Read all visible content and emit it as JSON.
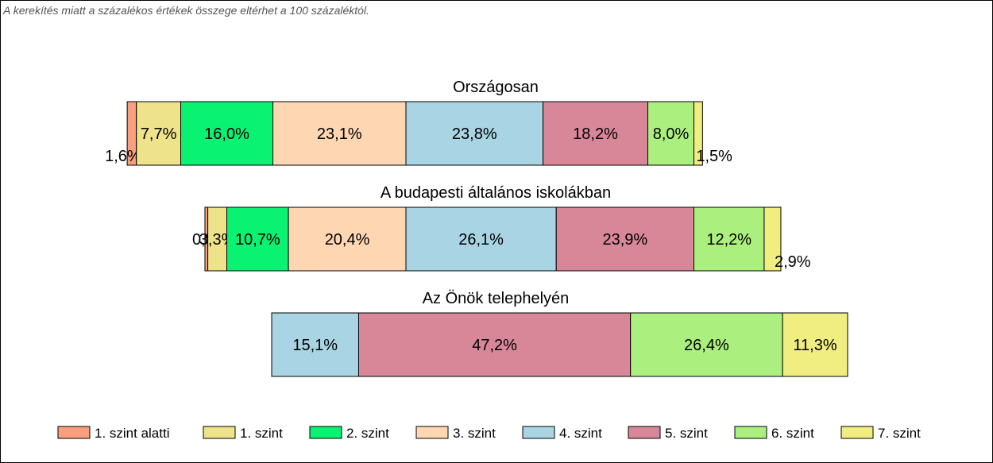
{
  "note": "A kerekítés miatt a  százalékos értékek összege eltérhet a 100 százaléktól.",
  "chart_data": {
    "type": "bar",
    "orientation": "horizontal-stacked",
    "unit": "%",
    "legend": {
      "placement": "bottom",
      "items": [
        {
          "name": "1. szint alatti",
          "color": "#f99f7e"
        },
        {
          "name": "1. szint",
          "color": "#eee28a"
        },
        {
          "name": "2. szint",
          "color": "#0af272"
        },
        {
          "name": "3. szint",
          "color": "#ffd6b2"
        },
        {
          "name": "4. szint",
          "color": "#a8d4e3"
        },
        {
          "name": "5. szint",
          "color": "#d88798"
        },
        {
          "name": "6. szint",
          "color": "#abf07e"
        },
        {
          "name": "7. szint",
          "color": "#f0ed81"
        }
      ]
    },
    "groups": [
      {
        "title": "Országosan",
        "values": [
          1.6,
          7.7,
          16.0,
          23.1,
          23.8,
          18.2,
          8.0,
          1.5
        ],
        "labels": [
          "1,6%",
          "7,7%",
          "16,0%",
          "23,1%",
          "23,8%",
          "18,2%",
          "8,0%",
          "1,5%"
        ]
      },
      {
        "title": "A budapesti általános iskolákban",
        "values": [
          0.5,
          3.3,
          10.7,
          20.4,
          26.1,
          23.9,
          12.2,
          2.9
        ],
        "labels": [
          "0,5%",
          "3,3%",
          "10,7%",
          "20,4%",
          "26,1%",
          "23,9%",
          "12,2%",
          "2,9%"
        ]
      },
      {
        "title": "Az Önök telephelyén",
        "values": [
          0,
          0,
          0,
          0,
          15.1,
          47.2,
          26.4,
          11.3
        ],
        "labels": [
          "",
          "",
          "",
          "",
          "15,1%",
          "47,2%",
          "26,4%",
          "11,3%"
        ]
      }
    ]
  }
}
